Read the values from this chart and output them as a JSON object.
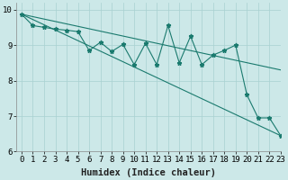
{
  "xlabel": "Humidex (Indice chaleur)",
  "bg_color": "#cce8e8",
  "line_color": "#1a7a6e",
  "xlim": [
    -0.5,
    23
  ],
  "ylim": [
    6,
    10.2
  ],
  "yticks": [
    6,
    7,
    8,
    9,
    10
  ],
  "xticks": [
    0,
    1,
    2,
    3,
    4,
    5,
    6,
    7,
    8,
    9,
    10,
    11,
    12,
    13,
    14,
    15,
    16,
    17,
    18,
    19,
    20,
    21,
    22,
    23
  ],
  "line1_x": [
    0,
    1,
    2,
    3,
    4,
    5,
    6,
    7,
    8,
    9,
    10,
    11,
    12,
    13,
    14,
    15,
    16,
    17,
    18,
    19,
    20,
    21,
    22,
    23
  ],
  "line1_y": [
    9.87,
    9.55,
    9.5,
    9.45,
    9.42,
    9.38,
    8.85,
    9.08,
    8.82,
    9.02,
    8.45,
    9.05,
    8.45,
    9.55,
    8.5,
    9.25,
    8.45,
    8.72,
    8.85,
    9.0,
    7.6,
    6.95,
    6.95,
    6.45
  ],
  "line2_x": [
    0,
    23
  ],
  "line2_y": [
    9.87,
    8.3
  ],
  "line3_x": [
    0,
    23
  ],
  "line3_y": [
    9.87,
    6.45
  ],
  "marker_style": "*",
  "marker_size": 3.5,
  "grid_color": "#a8d0d0",
  "font_size": 6.5,
  "xlabel_fontsize": 7.5
}
